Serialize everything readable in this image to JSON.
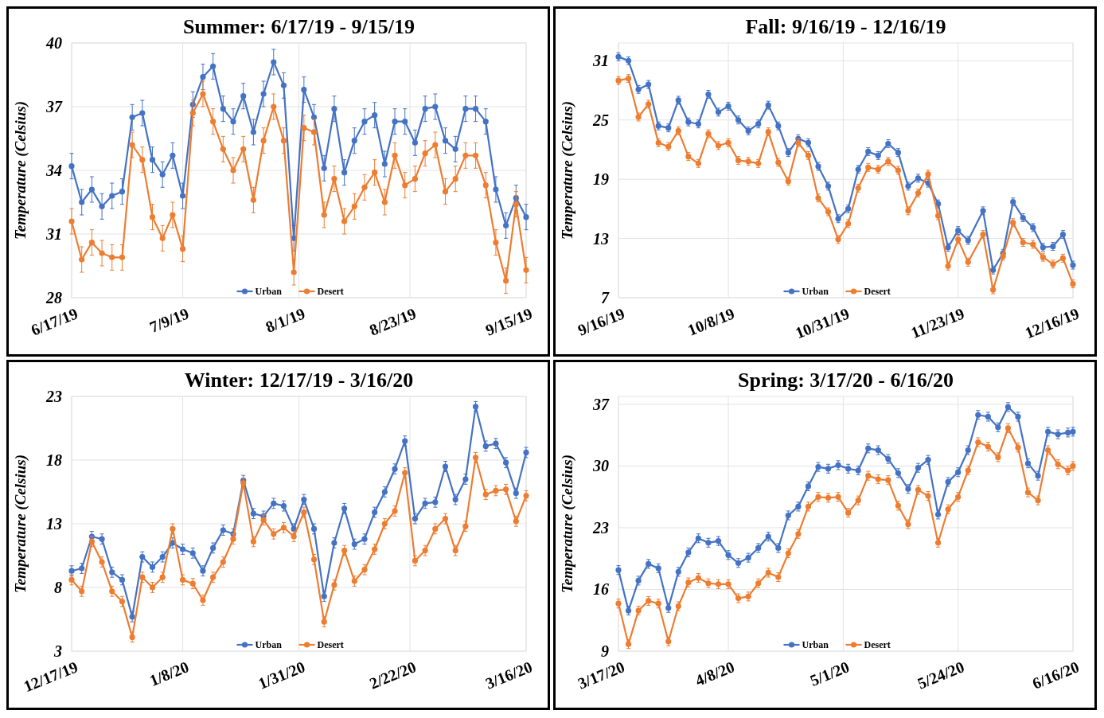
{
  "chart_data": [
    {
      "type": "line",
      "title": "Summer: 6/17/19 - 9/15/19",
      "ylabel": "Temperature (Celsius)",
      "grid": true,
      "legend": "bottom",
      "marker": "circle",
      "line_style": "solid",
      "x": [
        "2019-06-17",
        "2019-06-19",
        "2019-06-21",
        "2019-06-23",
        "2019-06-25",
        "2019-06-27",
        "2019-06-29",
        "2019-07-01",
        "2019-07-03",
        "2019-07-05",
        "2019-07-07",
        "2019-07-09",
        "2019-07-11",
        "2019-07-13",
        "2019-07-15",
        "2019-07-17",
        "2019-07-19",
        "2019-07-21",
        "2019-07-23",
        "2019-07-25",
        "2019-07-27",
        "2019-07-29",
        "2019-07-31",
        "2019-08-02",
        "2019-08-04",
        "2019-08-06",
        "2019-08-08",
        "2019-08-10",
        "2019-08-12",
        "2019-08-14",
        "2019-08-16",
        "2019-08-18",
        "2019-08-20",
        "2019-08-22",
        "2019-08-24",
        "2019-08-26",
        "2019-08-28",
        "2019-08-30",
        "2019-09-01",
        "2019-09-03",
        "2019-09-05",
        "2019-09-07",
        "2019-09-09",
        "2019-09-11",
        "2019-09-13",
        "2019-09-15"
      ],
      "xlim": [
        "2019-06-17",
        "2019-09-15"
      ],
      "xticks": [
        {
          "value": "2019-06-17",
          "label": "6/17/19"
        },
        {
          "value": "2019-07-09",
          "label": "7/9/19"
        },
        {
          "value": "2019-08-01",
          "label": "8/1/19"
        },
        {
          "value": "2019-08-23",
          "label": "8/23/19"
        },
        {
          "value": "2019-09-15",
          "label": "9/15/19"
        }
      ],
      "ylim": [
        28,
        40
      ],
      "yticks": [
        28,
        31,
        34,
        37,
        40
      ],
      "series": [
        {
          "name": "Urban",
          "color": "#4472c4",
          "values": [
            34.2,
            32.5,
            33.1,
            32.3,
            32.8,
            33.0,
            36.5,
            36.7,
            34.5,
            33.8,
            34.7,
            32.8,
            37.1,
            38.4,
            38.9,
            36.9,
            36.3,
            37.5,
            35.8,
            37.6,
            39.1,
            38.0,
            30.8,
            37.8,
            36.5,
            34.1,
            36.9,
            33.9,
            35.4,
            36.3,
            36.6,
            34.3,
            36.3,
            36.3,
            35.3,
            36.9,
            37.0,
            35.4,
            35.0,
            36.9,
            36.9,
            36.3,
            33.1,
            31.4,
            32.7,
            31.8
          ],
          "errors": [
            0.6,
            0.6,
            0.6,
            0.6,
            0.6,
            0.6,
            0.6,
            0.6,
            0.6,
            0.6,
            0.6,
            0.6,
            0.6,
            0.6,
            0.6,
            0.6,
            0.6,
            0.6,
            0.6,
            0.6,
            0.6,
            0.6,
            0.6,
            0.6,
            0.6,
            0.6,
            0.6,
            0.6,
            0.6,
            0.6,
            0.6,
            0.6,
            0.6,
            0.6,
            0.6,
            0.6,
            0.6,
            0.6,
            0.6,
            0.6,
            0.6,
            0.6,
            0.6,
            0.6,
            0.6,
            0.6
          ]
        },
        {
          "name": "Desert",
          "color": "#ed7d31",
          "values": [
            31.6,
            29.8,
            30.6,
            30.1,
            29.9,
            29.9,
            35.2,
            34.5,
            31.8,
            30.8,
            31.9,
            30.3,
            36.7,
            37.6,
            36.3,
            35.0,
            34.0,
            35.0,
            32.6,
            35.4,
            37.0,
            35.4,
            29.2,
            36.0,
            35.8,
            31.9,
            33.6,
            31.6,
            32.3,
            33.2,
            33.9,
            32.5,
            34.7,
            33.3,
            33.6,
            34.8,
            35.2,
            33.0,
            33.6,
            34.7,
            34.7,
            33.3,
            30.6,
            28.8,
            32.4,
            29.3
          ],
          "errors": [
            0.6,
            0.6,
            0.6,
            0.6,
            0.6,
            0.6,
            0.6,
            0.6,
            0.6,
            0.6,
            0.6,
            0.6,
            0.6,
            0.6,
            0.6,
            0.6,
            0.6,
            0.6,
            0.6,
            0.6,
            0.6,
            0.6,
            0.6,
            0.6,
            0.6,
            0.6,
            0.6,
            0.6,
            0.6,
            0.6,
            0.6,
            0.6,
            0.6,
            0.6,
            0.6,
            0.6,
            0.6,
            0.6,
            0.6,
            0.6,
            0.6,
            0.6,
            0.6,
            0.6,
            0.6,
            0.6
          ]
        }
      ]
    },
    {
      "type": "line",
      "title": "Fall: 9/16/19 - 12/16/19",
      "ylabel": "Temperature (Celsius)",
      "grid": true,
      "legend": "bottom",
      "marker": "circle",
      "line_style": "solid",
      "x": [
        "2019-09-16",
        "2019-09-18",
        "2019-09-20",
        "2019-09-22",
        "2019-09-24",
        "2019-09-26",
        "2019-09-28",
        "2019-09-30",
        "2019-10-02",
        "2019-10-04",
        "2019-10-06",
        "2019-10-08",
        "2019-10-10",
        "2019-10-12",
        "2019-10-14",
        "2019-10-16",
        "2019-10-18",
        "2019-10-20",
        "2019-10-22",
        "2019-10-24",
        "2019-10-26",
        "2019-10-28",
        "2019-10-30",
        "2019-11-01",
        "2019-11-03",
        "2019-11-05",
        "2019-11-07",
        "2019-11-09",
        "2019-11-11",
        "2019-11-13",
        "2019-11-15",
        "2019-11-17",
        "2019-11-19",
        "2019-11-21",
        "2019-11-23",
        "2019-11-25",
        "2019-11-28",
        "2019-11-30",
        "2019-12-02",
        "2019-12-04",
        "2019-12-06",
        "2019-12-08",
        "2019-12-10",
        "2019-12-12",
        "2019-12-14",
        "2019-12-16"
      ],
      "xlim": [
        "2019-09-16",
        "2019-12-16"
      ],
      "xticks": [
        {
          "value": "2019-09-16",
          "label": "9/16/19"
        },
        {
          "value": "2019-10-08",
          "label": "10/8/19"
        },
        {
          "value": "2019-10-31",
          "label": "10/31/19"
        },
        {
          "value": "2019-11-23",
          "label": "11/23/19"
        },
        {
          "value": "2019-12-16",
          "label": "12/16/19"
        }
      ],
      "ylim": [
        7,
        32.8
      ],
      "yticks": [
        7,
        13,
        19,
        25,
        31
      ],
      "series": [
        {
          "name": "Urban",
          "color": "#4472c4",
          "values": [
            31.4,
            31.0,
            28.1,
            28.6,
            24.4,
            24.2,
            27.0,
            24.8,
            24.6,
            27.6,
            25.8,
            26.4,
            25.0,
            23.9,
            24.6,
            26.5,
            24.4,
            21.7,
            23.1,
            22.7,
            20.3,
            18.3,
            15.0,
            16.0,
            20.0,
            21.8,
            21.4,
            22.6,
            21.7,
            18.3,
            19.1,
            18.6,
            16.5,
            12.1,
            13.8,
            12.8,
            15.8,
            9.8,
            11.5,
            16.7,
            15.1,
            14.1,
            12.1,
            12.2,
            13.4,
            10.3
          ],
          "errors": [
            0.4,
            0.4,
            0.4,
            0.4,
            0.4,
            0.4,
            0.4,
            0.4,
            0.4,
            0.4,
            0.4,
            0.4,
            0.4,
            0.4,
            0.4,
            0.4,
            0.4,
            0.4,
            0.4,
            0.4,
            0.4,
            0.4,
            0.4,
            0.4,
            0.4,
            0.4,
            0.4,
            0.4,
            0.4,
            0.4,
            0.4,
            0.4,
            0.4,
            0.4,
            0.4,
            0.4,
            0.4,
            0.4,
            0.4,
            0.4,
            0.4,
            0.4,
            0.4,
            0.4,
            0.4,
            0.4
          ]
        },
        {
          "name": "Desert",
          "color": "#ed7d31",
          "values": [
            29.0,
            29.2,
            25.3,
            26.6,
            22.7,
            22.3,
            23.9,
            21.3,
            20.6,
            23.6,
            22.4,
            22.7,
            20.9,
            20.8,
            20.6,
            23.8,
            20.7,
            18.8,
            22.7,
            21.4,
            17.1,
            15.7,
            12.9,
            14.5,
            18.1,
            20.2,
            20.0,
            20.8,
            19.9,
            15.8,
            17.6,
            19.5,
            15.3,
            10.2,
            12.9,
            10.6,
            13.4,
            7.8,
            11.2,
            14.6,
            12.6,
            12.4,
            11.1,
            10.4,
            11.0,
            8.4
          ],
          "errors": [
            0.4,
            0.4,
            0.4,
            0.4,
            0.4,
            0.4,
            0.4,
            0.4,
            0.4,
            0.4,
            0.4,
            0.4,
            0.4,
            0.4,
            0.4,
            0.4,
            0.4,
            0.4,
            0.4,
            0.4,
            0.4,
            0.4,
            0.4,
            0.4,
            0.4,
            0.4,
            0.4,
            0.4,
            0.4,
            0.4,
            0.4,
            0.4,
            0.4,
            0.4,
            0.4,
            0.4,
            0.4,
            0.4,
            0.4,
            0.4,
            0.4,
            0.4,
            0.4,
            0.4,
            0.4,
            0.4
          ]
        }
      ]
    },
    {
      "type": "line",
      "title": "Winter: 12/17/19 - 3/16/20",
      "ylabel": "Temperature (Celsius)",
      "grid": true,
      "legend": "bottom",
      "marker": "circle",
      "line_style": "solid",
      "x": [
        "2019-12-17",
        "2019-12-19",
        "2019-12-21",
        "2019-12-23",
        "2019-12-25",
        "2019-12-27",
        "2019-12-29",
        "2019-12-31",
        "2020-01-02",
        "2020-01-04",
        "2020-01-06",
        "2020-01-08",
        "2020-01-10",
        "2020-01-12",
        "2020-01-14",
        "2020-01-16",
        "2020-01-18",
        "2020-01-20",
        "2020-01-22",
        "2020-01-24",
        "2020-01-26",
        "2020-01-28",
        "2020-01-30",
        "2020-02-01",
        "2020-02-03",
        "2020-02-05",
        "2020-02-07",
        "2020-02-09",
        "2020-02-11",
        "2020-02-13",
        "2020-02-15",
        "2020-02-17",
        "2020-02-19",
        "2020-02-21",
        "2020-02-23",
        "2020-02-25",
        "2020-02-27",
        "2020-02-29",
        "2020-03-02",
        "2020-03-04",
        "2020-03-06",
        "2020-03-08",
        "2020-03-10",
        "2020-03-12",
        "2020-03-14",
        "2020-03-16"
      ],
      "xlim": [
        "2019-12-17",
        "2020-03-16"
      ],
      "xticks": [
        {
          "value": "2019-12-17",
          "label": "12/17/19"
        },
        {
          "value": "2020-01-08",
          "label": "1/8/20"
        },
        {
          "value": "2020-01-31",
          "label": "1/31/20"
        },
        {
          "value": "2020-02-22",
          "label": "2/22/20"
        },
        {
          "value": "2020-03-16",
          "label": "3/16/20"
        }
      ],
      "ylim": [
        3,
        23
      ],
      "yticks": [
        3,
        8,
        13,
        18,
        23
      ],
      "series": [
        {
          "name": "Urban",
          "color": "#4472c4",
          "values": [
            9.3,
            9.5,
            12.0,
            11.8,
            9.2,
            8.6,
            5.7,
            10.4,
            9.6,
            10.4,
            11.5,
            11.0,
            10.7,
            9.3,
            11.1,
            12.5,
            12.2,
            16.4,
            13.8,
            13.6,
            14.6,
            14.4,
            12.6,
            14.9,
            12.6,
            7.3,
            11.5,
            14.2,
            11.4,
            11.8,
            13.9,
            15.5,
            17.3,
            19.5,
            13.4,
            14.6,
            14.7,
            17.5,
            14.9,
            16.5,
            22.2,
            19.1,
            19.3,
            17.8,
            15.4,
            18.6
          ],
          "errors": [
            0.4,
            0.4,
            0.4,
            0.4,
            0.4,
            0.4,
            0.4,
            0.4,
            0.4,
            0.4,
            0.4,
            0.4,
            0.4,
            0.4,
            0.4,
            0.4,
            0.4,
            0.4,
            0.4,
            0.4,
            0.4,
            0.4,
            0.4,
            0.4,
            0.4,
            0.4,
            0.4,
            0.4,
            0.4,
            0.4,
            0.4,
            0.4,
            0.4,
            0.4,
            0.4,
            0.4,
            0.4,
            0.4,
            0.4,
            0.4,
            0.4,
            0.4,
            0.4,
            0.4,
            0.4,
            0.4
          ]
        },
        {
          "name": "Desert",
          "color": "#ed7d31",
          "values": [
            8.6,
            7.7,
            11.6,
            10.0,
            7.7,
            6.9,
            4.1,
            8.8,
            8.0,
            8.8,
            12.6,
            8.6,
            8.3,
            7.0,
            8.8,
            10.0,
            11.8,
            16.2,
            11.6,
            13.3,
            12.2,
            12.7,
            12.0,
            13.9,
            10.2,
            5.3,
            8.2,
            10.9,
            8.5,
            9.4,
            11.0,
            13.0,
            14.0,
            17.0,
            10.1,
            10.9,
            12.6,
            13.4,
            10.9,
            12.8,
            18.2,
            15.3,
            15.6,
            15.7,
            13.2,
            15.2
          ],
          "errors": [
            0.4,
            0.4,
            0.4,
            0.4,
            0.4,
            0.4,
            0.4,
            0.4,
            0.4,
            0.4,
            0.4,
            0.4,
            0.4,
            0.4,
            0.4,
            0.4,
            0.4,
            0.4,
            0.4,
            0.4,
            0.4,
            0.4,
            0.4,
            0.4,
            0.4,
            0.4,
            0.4,
            0.4,
            0.4,
            0.4,
            0.4,
            0.4,
            0.4,
            0.4,
            0.4,
            0.4,
            0.4,
            0.4,
            0.4,
            0.4,
            0.4,
            0.4,
            0.4,
            0.4,
            0.4,
            0.4
          ]
        }
      ]
    },
    {
      "type": "line",
      "title": "Spring: 3/17/20 - 6/16/20",
      "ylabel": "Temperature (Celsius)",
      "grid": true,
      "legend": "bottom",
      "marker": "circle",
      "line_style": "solid",
      "x": [
        "2020-03-17",
        "2020-03-19",
        "2020-03-21",
        "2020-03-23",
        "2020-03-25",
        "2020-03-27",
        "2020-03-29",
        "2020-03-31",
        "2020-04-02",
        "2020-04-04",
        "2020-04-06",
        "2020-04-08",
        "2020-04-10",
        "2020-04-12",
        "2020-04-14",
        "2020-04-16",
        "2020-04-18",
        "2020-04-20",
        "2020-04-22",
        "2020-04-24",
        "2020-04-26",
        "2020-04-28",
        "2020-04-30",
        "2020-05-02",
        "2020-05-04",
        "2020-05-06",
        "2020-05-08",
        "2020-05-10",
        "2020-05-12",
        "2020-05-14",
        "2020-05-16",
        "2020-05-18",
        "2020-05-20",
        "2020-05-22",
        "2020-05-24",
        "2020-05-26",
        "2020-05-28",
        "2020-05-30",
        "2020-06-01",
        "2020-06-03",
        "2020-06-05",
        "2020-06-07",
        "2020-06-09",
        "2020-06-11",
        "2020-06-13",
        "2020-06-15",
        "2020-06-16"
      ],
      "xlim": [
        "2020-03-17",
        "2020-06-16"
      ],
      "xticks": [
        {
          "value": "2020-03-17",
          "label": "3/17/20"
        },
        {
          "value": "2020-04-08",
          "label": "4/8/20"
        },
        {
          "value": "2020-05-01",
          "label": "5/1/20"
        },
        {
          "value": "2020-05-24",
          "label": "5/24/20"
        },
        {
          "value": "2020-06-16",
          "label": "6/16/20"
        }
      ],
      "ylim": [
        9,
        37.9
      ],
      "yticks": [
        9,
        16,
        23,
        30,
        37
      ],
      "series": [
        {
          "name": "Urban",
          "color": "#4472c4",
          "values": [
            18.2,
            13.6,
            17.0,
            18.9,
            18.4,
            13.9,
            18.0,
            20.2,
            21.8,
            21.3,
            21.5,
            19.9,
            19.0,
            19.6,
            20.7,
            22.0,
            20.7,
            24.4,
            25.4,
            27.7,
            29.9,
            29.7,
            30.1,
            29.7,
            29.5,
            32.0,
            31.8,
            30.8,
            29.2,
            27.4,
            29.8,
            30.7,
            24.5,
            28.2,
            29.3,
            31.8,
            35.8,
            35.6,
            34.4,
            36.7,
            35.6,
            30.3,
            28.9,
            33.9,
            33.6,
            33.8,
            33.9
          ],
          "errors": [
            0.5,
            0.5,
            0.5,
            0.5,
            0.5,
            0.5,
            0.5,
            0.5,
            0.5,
            0.5,
            0.5,
            0.5,
            0.5,
            0.5,
            0.5,
            0.5,
            0.5,
            0.5,
            0.5,
            0.5,
            0.5,
            0.5,
            0.5,
            0.5,
            0.5,
            0.5,
            0.5,
            0.5,
            0.5,
            0.5,
            0.5,
            0.5,
            0.5,
            0.5,
            0.5,
            0.5,
            0.5,
            0.5,
            0.5,
            0.5,
            0.5,
            0.5,
            0.5,
            0.5,
            0.5,
            0.5,
            0.5
          ]
        },
        {
          "name": "Desert",
          "color": "#ed7d31",
          "values": [
            14.4,
            9.8,
            13.6,
            14.7,
            14.4,
            10.1,
            14.1,
            16.8,
            17.3,
            16.7,
            16.6,
            16.6,
            15.0,
            15.2,
            16.7,
            17.9,
            17.4,
            20.1,
            22.3,
            25.4,
            26.5,
            26.4,
            26.5,
            24.7,
            26.1,
            28.9,
            28.5,
            28.4,
            25.5,
            23.4,
            27.3,
            26.6,
            21.3,
            25.1,
            26.5,
            29.5,
            32.7,
            32.2,
            31.0,
            34.3,
            32.1,
            27.0,
            26.1,
            31.8,
            30.2,
            29.5,
            30.0
          ],
          "errors": [
            0.5,
            0.5,
            0.5,
            0.5,
            0.5,
            0.5,
            0.5,
            0.5,
            0.5,
            0.5,
            0.5,
            0.5,
            0.5,
            0.5,
            0.5,
            0.5,
            0.5,
            0.5,
            0.5,
            0.5,
            0.5,
            0.5,
            0.5,
            0.5,
            0.5,
            0.5,
            0.5,
            0.5,
            0.5,
            0.5,
            0.5,
            0.5,
            0.5,
            0.5,
            0.5,
            0.5,
            0.5,
            0.5,
            0.5,
            0.5,
            0.5,
            0.5,
            0.5,
            0.5,
            0.5,
            0.5,
            0.5
          ]
        }
      ]
    }
  ]
}
